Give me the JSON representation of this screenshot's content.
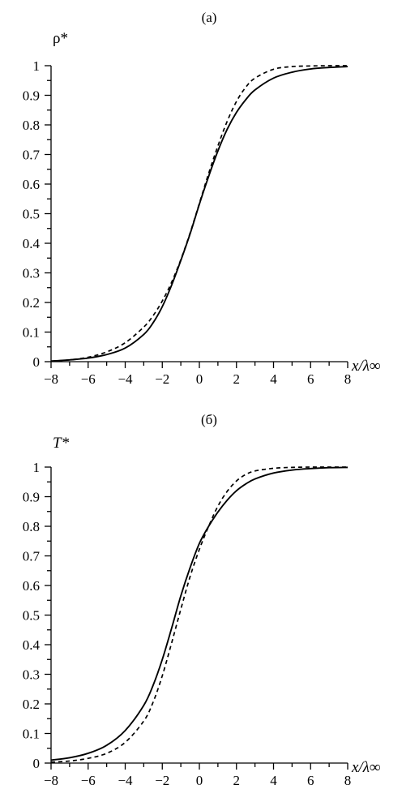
{
  "chart_data": [
    {
      "type": "line",
      "panel_label": "(a)",
      "ylabel": "ρ*",
      "xlabel": "x/λ∞",
      "xlim": [
        -8,
        8
      ],
      "ylim": [
        0,
        1
      ],
      "x_ticks": [
        "−8",
        "−6",
        "−4",
        "−2",
        "0",
        "2",
        "4",
        "6",
        "8"
      ],
      "y_ticks": [
        "0",
        "0.1",
        "0.2",
        "0.3",
        "0.4",
        "0.5",
        "0.6",
        "0.7",
        "0.8",
        "0.9",
        "1"
      ],
      "grid": false,
      "series": [
        {
          "style": "solid",
          "x": [
            -8,
            -7,
            -6,
            -5,
            -4,
            -3,
            -2.5,
            -2,
            -1.5,
            -1,
            -0.5,
            0,
            0.5,
            1,
            1.5,
            2,
            2.5,
            3,
            4,
            5,
            6,
            7,
            8
          ],
          "y": [
            0.002,
            0.006,
            0.012,
            0.024,
            0.046,
            0.092,
            0.131,
            0.186,
            0.258,
            0.342,
            0.432,
            0.532,
            0.626,
            0.712,
            0.785,
            0.842,
            0.885,
            0.918,
            0.958,
            0.978,
            0.989,
            0.994,
            0.997
          ]
        },
        {
          "style": "dashed",
          "x": [
            -8,
            -7,
            -6,
            -5,
            -4,
            -3,
            -2.5,
            -2,
            -1.5,
            -1,
            -0.5,
            0,
            0.5,
            1,
            1.5,
            2,
            2.5,
            3,
            4,
            5,
            6,
            7,
            8
          ],
          "y": [
            0.002,
            0.006,
            0.015,
            0.033,
            0.064,
            0.117,
            0.155,
            0.205,
            0.268,
            0.345,
            0.435,
            0.535,
            0.636,
            0.729,
            0.812,
            0.879,
            0.927,
            0.958,
            0.988,
            0.997,
            0.999,
            1.0,
            1.0
          ]
        }
      ]
    },
    {
      "type": "line",
      "panel_label": "(б)",
      "ylabel": "T*",
      "xlabel": "x/λ∞",
      "xlim": [
        -8,
        8
      ],
      "ylim": [
        0,
        1
      ],
      "x_ticks": [
        "−8",
        "−6",
        "−4",
        "−2",
        "0",
        "2",
        "4",
        "6",
        "8"
      ],
      "y_ticks": [
        "0",
        "0.1",
        "0.2",
        "0.3",
        "0.4",
        "0.5",
        "0.6",
        "0.7",
        "0.8",
        "0.9",
        "1"
      ],
      "grid": false,
      "series": [
        {
          "style": "solid",
          "x": [
            -8,
            -7,
            -6,
            -5,
            -4,
            -3,
            -2.5,
            -2,
            -1.5,
            -1,
            -0.5,
            0,
            0.5,
            1,
            1.5,
            2,
            2.5,
            3,
            4,
            5,
            6,
            7,
            8
          ],
          "y": [
            0.01,
            0.018,
            0.033,
            0.06,
            0.11,
            0.195,
            0.262,
            0.35,
            0.455,
            0.565,
            0.66,
            0.742,
            0.8,
            0.848,
            0.888,
            0.92,
            0.943,
            0.96,
            0.98,
            0.99,
            0.995,
            0.998,
            0.999
          ]
        },
        {
          "style": "dashed",
          "x": [
            -8,
            -7,
            -6,
            -5,
            -4,
            -3,
            -2.5,
            -2,
            -1.5,
            -1,
            -0.5,
            0,
            0.5,
            1,
            1.5,
            2,
            2.5,
            3,
            4,
            5,
            6,
            7,
            8
          ],
          "y": [
            0.003,
            0.007,
            0.016,
            0.033,
            0.07,
            0.142,
            0.205,
            0.295,
            0.405,
            0.52,
            0.63,
            0.722,
            0.8,
            0.868,
            0.918,
            0.953,
            0.975,
            0.987,
            0.996,
            0.999,
            1.0,
            1.0,
            1.0
          ]
        }
      ]
    }
  ]
}
